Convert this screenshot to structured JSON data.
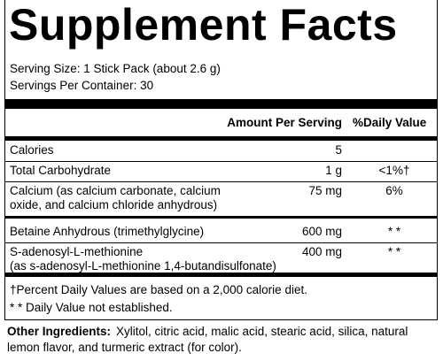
{
  "title": "Supplement Facts",
  "serving_size": "Serving Size: 1 Stick Pack (about 2.6 g)",
  "servings_per_container": "Servings Per Container: 30",
  "table": {
    "header": {
      "amount": "Amount Per Serving",
      "daily_value": "%Daily Value"
    },
    "rows": [
      {
        "name_lines": [
          "Calories"
        ],
        "amount": "5",
        "daily_value": ""
      },
      {
        "name_lines": [
          "Total Carbohydrate"
        ],
        "amount": "1 g",
        "daily_value": "<1%†"
      },
      {
        "name_lines": [
          "Calcium (as calcium carbonate, calcium",
          "oxide, and calcium chloride anhydrous)"
        ],
        "amount": "75 mg",
        "daily_value": "6%"
      },
      {
        "name_lines": [
          "Betaine Anhydrous (trimethylglycine)"
        ],
        "amount": "600 mg",
        "daily_value": "* *"
      },
      {
        "name_lines": [
          "S-adenosyl-L-methionine",
          "(as s-adenosyl-L-methionine 1,4-butandisulfonate)"
        ],
        "amount": "400 mg",
        "daily_value": "* *"
      }
    ]
  },
  "footnotes": [
    "†Percent Daily Values are based on a 2,000 calorie diet.",
    "* * Daily Value not established."
  ],
  "other_ingredients": {
    "label": "Other Ingredients:",
    "text_lines": [
      "Xylitol, citric acid, malic acid, stearic acid, silica, natural",
      "lemon flavor, and turmeric extract (for color)."
    ]
  }
}
